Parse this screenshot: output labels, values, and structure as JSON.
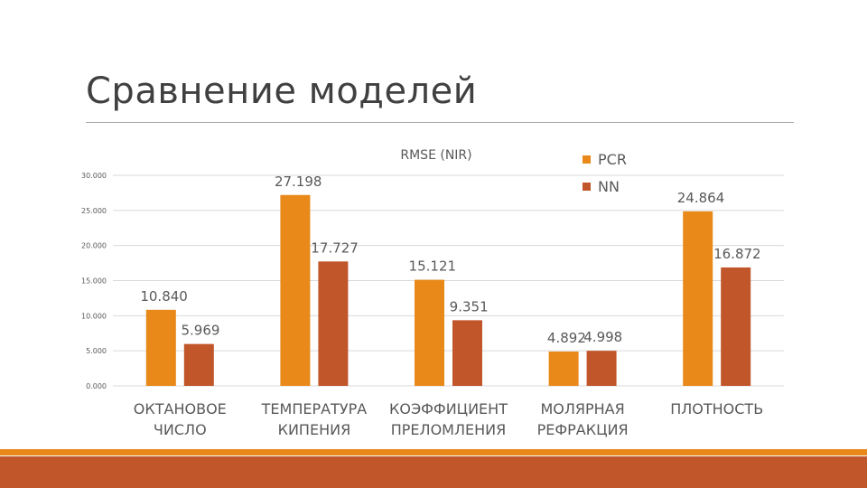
{
  "slide": {
    "title": "Сравнение моделей"
  },
  "colors": {
    "pcr": "#e8891a",
    "nn": "#c0562a",
    "grid": "#d9d9d9",
    "text": "#595959",
    "footer": "#c0562a",
    "footer_stripe": "#e8891a"
  },
  "chart_data": {
    "type": "bar",
    "title": "RMSE (NIR)",
    "categories": [
      [
        "ОКТАНОВОЕ",
        "ЧИСЛО"
      ],
      [
        "ТЕМПЕРАТУРА",
        "КИПЕНИЯ"
      ],
      [
        "КОЭФФИЦИЕНТ",
        "ПРЕЛОМЛЕНИЯ"
      ],
      [
        "МОЛЯРНАЯ",
        "РЕФРАКЦИЯ"
      ],
      [
        "ПЛОТНОСТЬ"
      ]
    ],
    "series": [
      {
        "name": "PCR",
        "values": [
          10.84,
          27.198,
          15.121,
          4.892,
          24.864
        ],
        "labels": [
          "10.840",
          "27.198",
          "15.121",
          "4.892",
          "24.864"
        ]
      },
      {
        "name": "NN",
        "values": [
          5.969,
          17.727,
          9.351,
          4.998,
          16.872
        ],
        "labels": [
          "5.969",
          "17.727",
          "9.351",
          "4.998",
          "16.872"
        ]
      }
    ],
    "ylim": [
      0,
      30
    ],
    "yticks": [
      0,
      5,
      10,
      15,
      20,
      25,
      30
    ],
    "ytick_labels": [
      "0.000",
      "5.000",
      "10.000",
      "15.000",
      "20.000",
      "25.000",
      "30.000"
    ],
    "grid": true,
    "legend": "top-right",
    "xlabel": "",
    "ylabel": ""
  }
}
